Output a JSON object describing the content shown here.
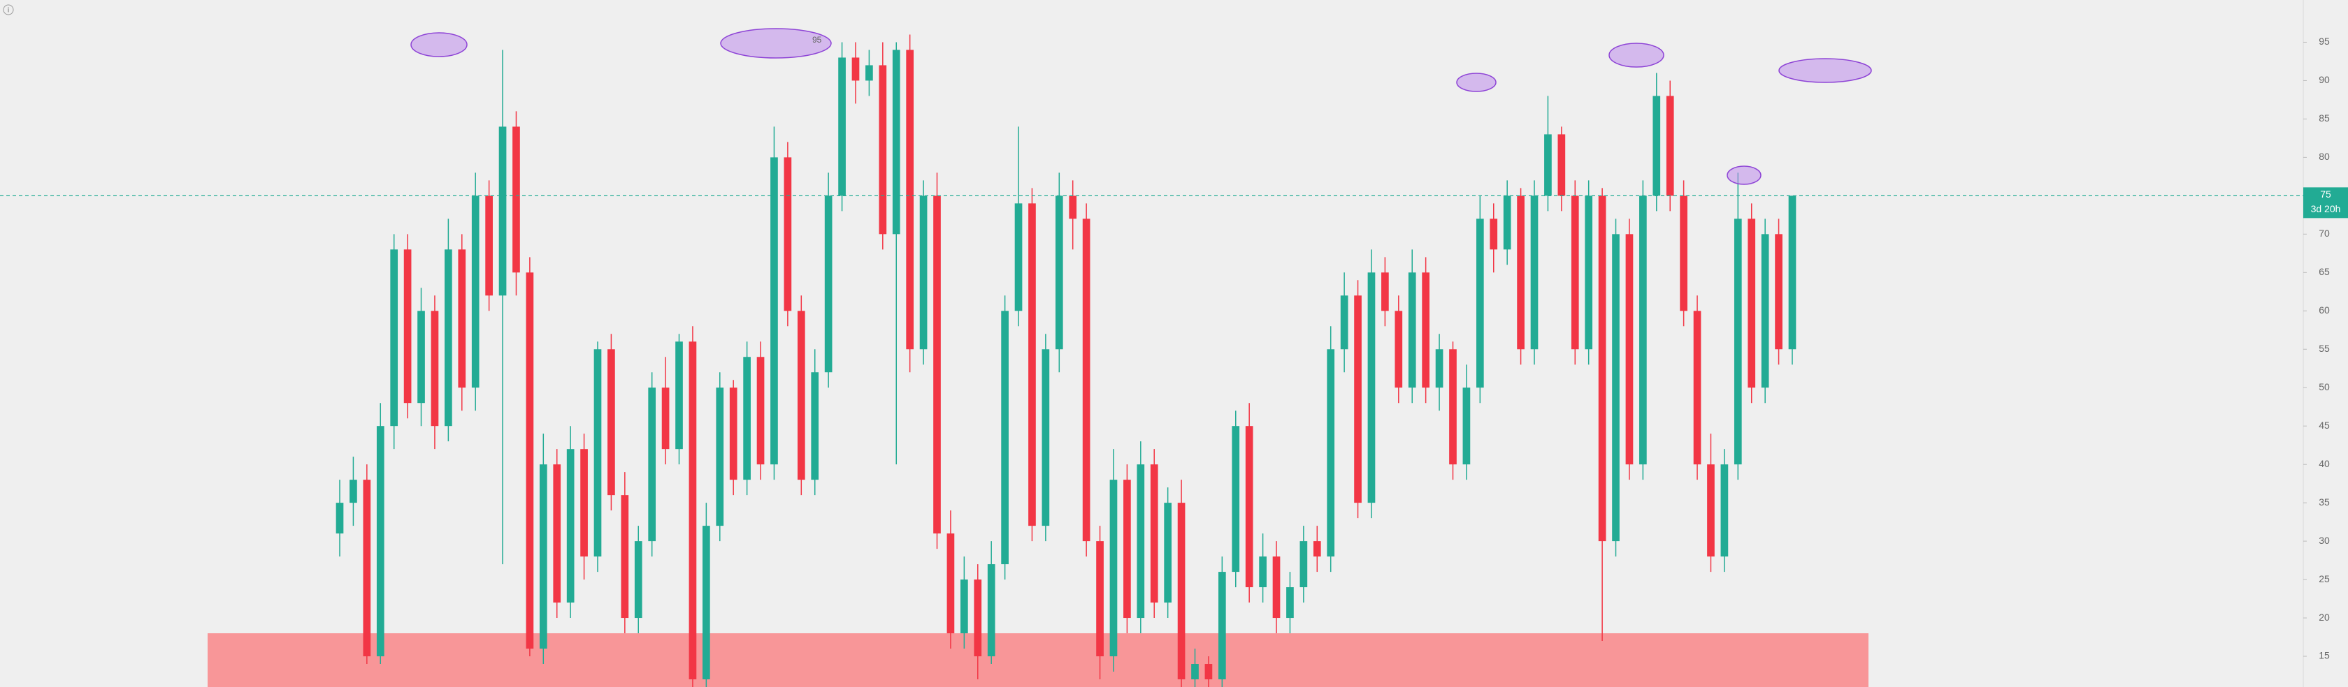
{
  "chart_data": {
    "type": "candlestick",
    "open": [
      31,
      35,
      38,
      15,
      45,
      68,
      48,
      60,
      45,
      68,
      50,
      75,
      62,
      84,
      65,
      16,
      40,
      22,
      42,
      28,
      55,
      36,
      20,
      30,
      50,
      42,
      56,
      12,
      32,
      50,
      38,
      54,
      40,
      80,
      60,
      38,
      52,
      75,
      93,
      90,
      92,
      70,
      94,
      55,
      75,
      31,
      18,
      25,
      15,
      27,
      60,
      74,
      32,
      55,
      75,
      72,
      30,
      15,
      38,
      20,
      40,
      22,
      35,
      12,
      14,
      12,
      26,
      45,
      24,
      28,
      20,
      24,
      30,
      28,
      55,
      62,
      35,
      65,
      60,
      50,
      65,
      50,
      55,
      40,
      50,
      72,
      68,
      75,
      55,
      75,
      83,
      75,
      55,
      75,
      30,
      70,
      40,
      75,
      88,
      75,
      60,
      40,
      28,
      40,
      72,
      50,
      70,
      55
    ],
    "high": [
      38,
      41,
      40,
      48,
      70,
      70,
      63,
      62,
      72,
      70,
      78,
      77,
      94,
      86,
      67,
      44,
      42,
      45,
      44,
      56,
      57,
      39,
      32,
      52,
      54,
      57,
      58,
      35,
      52,
      51,
      56,
      56,
      84,
      82,
      62,
      55,
      78,
      95,
      95,
      94,
      95,
      95,
      96,
      77,
      78,
      34,
      28,
      27,
      30,
      62,
      84,
      76,
      57,
      78,
      77,
      74,
      32,
      42,
      40,
      43,
      42,
      37,
      38,
      16,
      15,
      28,
      47,
      48,
      31,
      30,
      26,
      32,
      32,
      58,
      65,
      64,
      68,
      67,
      62,
      68,
      67,
      57,
      56,
      53,
      75,
      74,
      77,
      76,
      77,
      88,
      84,
      77,
      77,
      76,
      72,
      72,
      77,
      91,
      90,
      77,
      62,
      44,
      42,
      78,
      74,
      72,
      72,
      75
    ],
    "low": [
      28,
      32,
      14,
      14,
      42,
      46,
      45,
      42,
      43,
      47,
      47,
      60,
      27,
      62,
      15,
      14,
      20,
      20,
      25,
      26,
      34,
      18,
      18,
      28,
      40,
      40,
      11,
      11,
      30,
      36,
      36,
      38,
      38,
      58,
      36,
      36,
      50,
      73,
      87,
      88,
      68,
      40,
      52,
      53,
      29,
      16,
      16,
      12,
      14,
      25,
      58,
      30,
      30,
      52,
      68,
      28,
      12,
      13,
      18,
      18,
      20,
      20,
      11,
      11,
      11,
      11,
      24,
      22,
      22,
      18,
      18,
      22,
      26,
      26,
      52,
      33,
      33,
      58,
      48,
      48,
      48,
      47,
      38,
      38,
      48,
      65,
      66,
      53,
      53,
      73,
      73,
      53,
      53,
      17,
      28,
      38,
      38,
      73,
      73,
      58,
      38,
      26,
      26,
      38,
      48,
      48,
      53,
      53
    ],
    "close": [
      35,
      38,
      15,
      45,
      68,
      48,
      60,
      45,
      68,
      50,
      75,
      62,
      84,
      65,
      16,
      40,
      22,
      42,
      28,
      55,
      36,
      20,
      30,
      50,
      42,
      56,
      12,
      32,
      50,
      38,
      54,
      40,
      80,
      60,
      38,
      52,
      75,
      93,
      90,
      92,
      70,
      94,
      55,
      75,
      31,
      18,
      25,
      15,
      27,
      60,
      74,
      32,
      55,
      75,
      72,
      30,
      15,
      38,
      20,
      40,
      22,
      35,
      12,
      14,
      12,
      26,
      45,
      24,
      28,
      20,
      24,
      30,
      28,
      55,
      62,
      35,
      65,
      60,
      50,
      65,
      50,
      55,
      40,
      50,
      72,
      68,
      75,
      55,
      75,
      83,
      75,
      55,
      75,
      30,
      70,
      40,
      75,
      88,
      75,
      60,
      40,
      28,
      40,
      72,
      50,
      70,
      55,
      75
    ],
    "up_color": "#22ab94",
    "down_color": "#f23645",
    "ylim": [
      11,
      100.5
    ],
    "yticks": [
      15,
      20,
      25,
      30,
      35,
      40,
      45,
      50,
      55,
      60,
      65,
      70,
      75,
      80,
      85,
      90,
      95
    ],
    "last_price": 75,
    "countdown": "3d 20h",
    "highlight_band": [
      11,
      18
    ],
    "band_color": "#f89698",
    "annotations": [
      "95"
    ]
  }
}
